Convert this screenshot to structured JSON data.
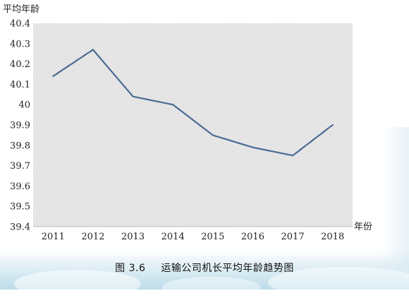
{
  "chart_data": {
    "type": "line",
    "categories": [
      "2011",
      "2012",
      "2013",
      "2014",
      "2015",
      "2016",
      "2017",
      "2018"
    ],
    "series": [
      {
        "values": [
          40.14,
          40.27,
          40.04,
          40.0,
          39.85,
          39.79,
          39.75,
          39.9
        ]
      }
    ],
    "y_ticks": [
      "40.4",
      "40.3",
      "40.2",
      "40.1",
      "40",
      "39.9",
      "39.8",
      "39.7",
      "39.6",
      "39.5",
      "39.4"
    ],
    "ylim": [
      39.4,
      40.4
    ],
    "ylabel": "平均年龄",
    "xlabel": "年份",
    "grid": "hatched plot area",
    "line_color": "#4a6b93"
  },
  "caption": {
    "figure_number": "图 3.6",
    "title": "运输公司机长平均年龄趋势图"
  }
}
